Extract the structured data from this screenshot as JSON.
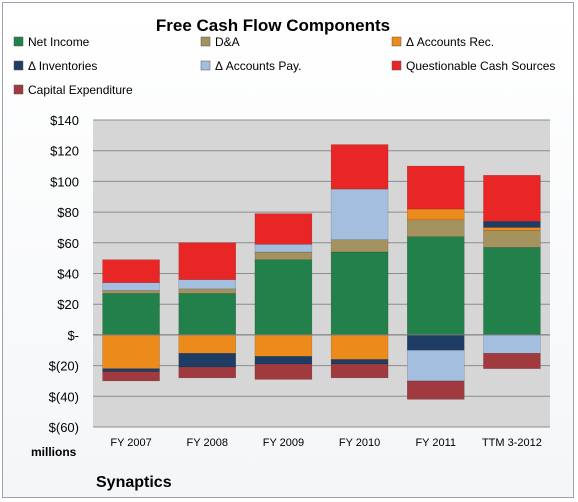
{
  "chart_data": {
    "type": "bar",
    "stacked": true,
    "title": "Free Cash Flow Components",
    "categories": [
      "FY 2007",
      "FY 2008",
      "FY 2009",
      "FY 2010",
      "FY 2011",
      "TTM 3-2012"
    ],
    "yticks": [
      "$140",
      "$120",
      "$100",
      "$80",
      "$60",
      "$40",
      "$20",
      "$-",
      "$(20)",
      "$(40)",
      "$(60)"
    ],
    "ylim": [
      -60,
      140
    ],
    "ylabel_units": "millions",
    "grid": true,
    "legend_position": "top",
    "series": [
      {
        "name": "Net Income",
        "color": "#22804a",
        "values": [
          27,
          27,
          49,
          54,
          64,
          57
        ]
      },
      {
        "name": "D&A",
        "color": "#a4925f",
        "values": [
          2,
          3,
          5,
          8,
          11,
          11
        ]
      },
      {
        "name": "Δ Accounts Rec.",
        "color": "#ec8a1c",
        "values": [
          -22,
          -12,
          -14,
          -16,
          7,
          2
        ]
      },
      {
        "name": "Δ Inventories",
        "color": "#1f3d64",
        "values": [
          -2,
          -9,
          -5,
          -3,
          -10,
          4
        ]
      },
      {
        "name": "Δ Accounts Pay.",
        "color": "#a3bede",
        "values": [
          5,
          6,
          5,
          33,
          -20,
          -12
        ]
      },
      {
        "name": "Questionable Cash Sources",
        "color": "#e82626",
        "values": [
          15,
          24,
          20,
          29,
          28,
          30
        ]
      },
      {
        "name": "Capital Expenditure",
        "color": "#a03a3e",
        "values": [
          -6,
          -7,
          -10,
          -9,
          -12,
          -10
        ]
      }
    ]
  },
  "footer": {
    "company": "Synaptics"
  }
}
